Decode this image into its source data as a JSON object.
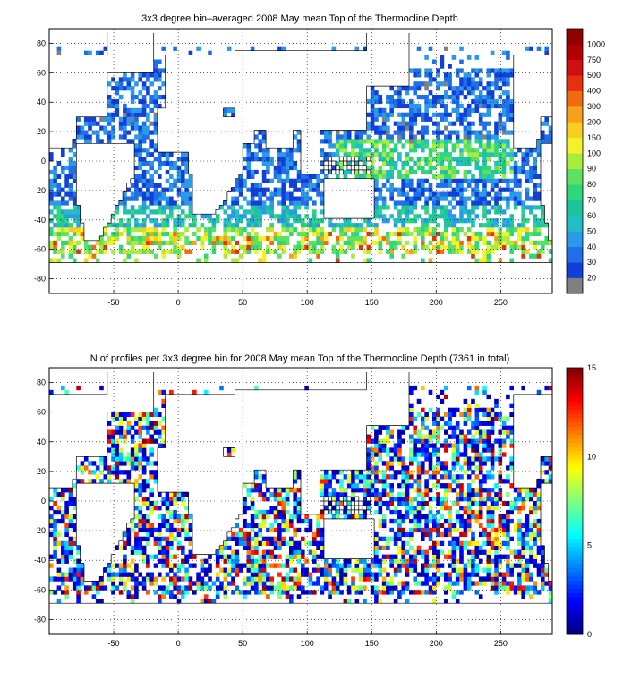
{
  "panels": [
    {
      "title": "3x3 degree bin–averaged 2008 May mean Top of the Thermocline Depth",
      "x_ticks": [
        "-50",
        "0",
        "50",
        "100",
        "150",
        "200",
        "250"
      ],
      "y_ticks": [
        "80",
        "60",
        "40",
        "20",
        "0",
        "-20",
        "-40",
        "-60",
        "-80"
      ],
      "colorbar": {
        "type": "discrete",
        "labels": [
          "20",
          "30",
          "40",
          "50",
          "60",
          "70",
          "80",
          "90",
          "100",
          "150",
          "200",
          "300",
          "400",
          "500",
          "750",
          "1000"
        ],
        "colors": [
          "#808080",
          "#1040d8",
          "#1f6fe8",
          "#2a9ae8",
          "#21bfc3",
          "#1cc49a",
          "#2fd67a",
          "#5fe060",
          "#a8ec3c",
          "#f2f22a",
          "#f7cf20",
          "#f7a01a",
          "#f26a10",
          "#e83010",
          "#d01010",
          "#b00000",
          "#900000"
        ]
      }
    },
    {
      "title": "N of profiles per 3x3 degree bin for 2008 May mean Top of the Thermocline Depth  (7361 in total)",
      "x_ticks": [
        "-50",
        "0",
        "50",
        "100",
        "150",
        "200",
        "250"
      ],
      "y_ticks": [
        "80",
        "60",
        "40",
        "20",
        "0",
        "-20",
        "-40",
        "-60",
        "-80"
      ],
      "colorbar": {
        "type": "continuous",
        "labels": [
          "0",
          "5",
          "10",
          "15"
        ],
        "range": [
          0,
          15
        ]
      }
    }
  ],
  "chart_data": [
    {
      "type": "heatmap",
      "title": "3x3 degree bin–averaged 2008 May mean Top of the Thermocline Depth",
      "bin_size_deg": 3,
      "xlim": [
        -100,
        290
      ],
      "ylim": [
        -90,
        90
      ],
      "colorbar_levels": [
        20,
        30,
        40,
        50,
        60,
        70,
        80,
        90,
        100,
        150,
        200,
        300,
        400,
        500,
        750,
        1000
      ]
    },
    {
      "type": "heatmap",
      "title": "N of profiles per 3x3 degree bin for 2008 May mean Top of the Thermocline Depth  (7361 in total)",
      "bin_size_deg": 3,
      "xlim": [
        -100,
        290
      ],
      "ylim": [
        -90,
        90
      ],
      "colorbar_range": [
        0,
        15
      ],
      "total_profiles": 7361
    }
  ]
}
